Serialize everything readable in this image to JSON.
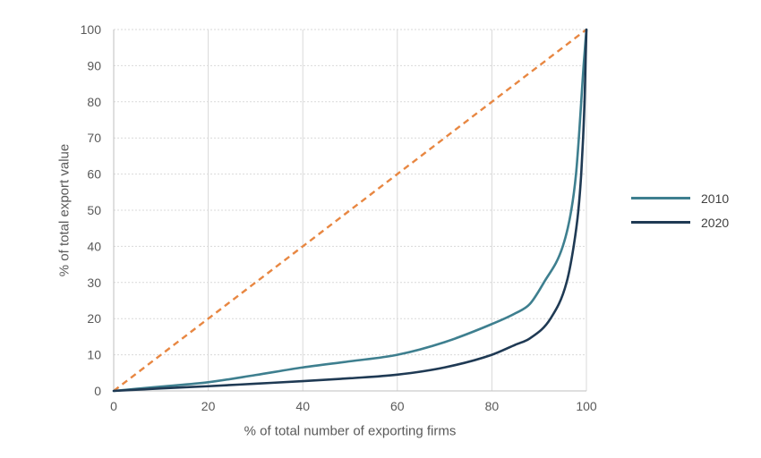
{
  "chart_data": {
    "type": "line",
    "title": "",
    "xlabel": "% of total number of exporting firms",
    "ylabel": "% of total export value",
    "xlim": [
      0,
      100
    ],
    "ylim": [
      0,
      100
    ],
    "x_ticks": [
      0,
      20,
      40,
      60,
      80,
      100
    ],
    "y_ticks": [
      0,
      10,
      20,
      30,
      40,
      50,
      60,
      70,
      80,
      90,
      100
    ],
    "grid": true,
    "legend_position": "right-center",
    "series": [
      {
        "name": "2010",
        "color": "#3E7F8F",
        "points": [
          [
            0,
            0
          ],
          [
            10,
            1.2
          ],
          [
            20,
            2.4
          ],
          [
            30,
            4.4
          ],
          [
            40,
            6.5
          ],
          [
            50,
            8.2
          ],
          [
            60,
            10
          ],
          [
            70,
            13.5
          ],
          [
            80,
            18.5
          ],
          [
            85,
            21.5
          ],
          [
            88,
            24
          ],
          [
            91,
            30
          ],
          [
            95,
            40
          ],
          [
            96.8,
            50
          ],
          [
            97.8,
            60
          ],
          [
            98.4,
            70
          ],
          [
            98.9,
            80
          ],
          [
            99.4,
            90
          ],
          [
            100,
            100
          ]
        ]
      },
      {
        "name": "2020",
        "color": "#1F3A54",
        "points": [
          [
            0,
            0
          ],
          [
            10,
            0.7
          ],
          [
            20,
            1.3
          ],
          [
            30,
            2
          ],
          [
            40,
            2.7
          ],
          [
            50,
            3.5
          ],
          [
            60,
            4.5
          ],
          [
            70,
            6.5
          ],
          [
            80,
            10
          ],
          [
            85,
            12.8
          ],
          [
            88,
            14.5
          ],
          [
            92.4,
            20
          ],
          [
            95.8,
            30
          ],
          [
            97.3,
            40
          ],
          [
            98.3,
            50
          ],
          [
            98.9,
            60
          ],
          [
            99.3,
            70
          ],
          [
            99.6,
            80
          ],
          [
            99.8,
            90
          ],
          [
            100,
            100
          ]
        ]
      }
    ],
    "reference_line": {
      "name": "equality-diagonal",
      "style": "dashed",
      "color": "#E88742",
      "points": [
        [
          0,
          0
        ],
        [
          100,
          100
        ]
      ]
    }
  },
  "style": {
    "grid_color": "#D9D9D9",
    "axis_color": "#BFBFBF",
    "tick_label_color": "#595959",
    "axis_title_color": "#595959",
    "legend_text_color": "#404040",
    "background": "#FFFFFF"
  }
}
